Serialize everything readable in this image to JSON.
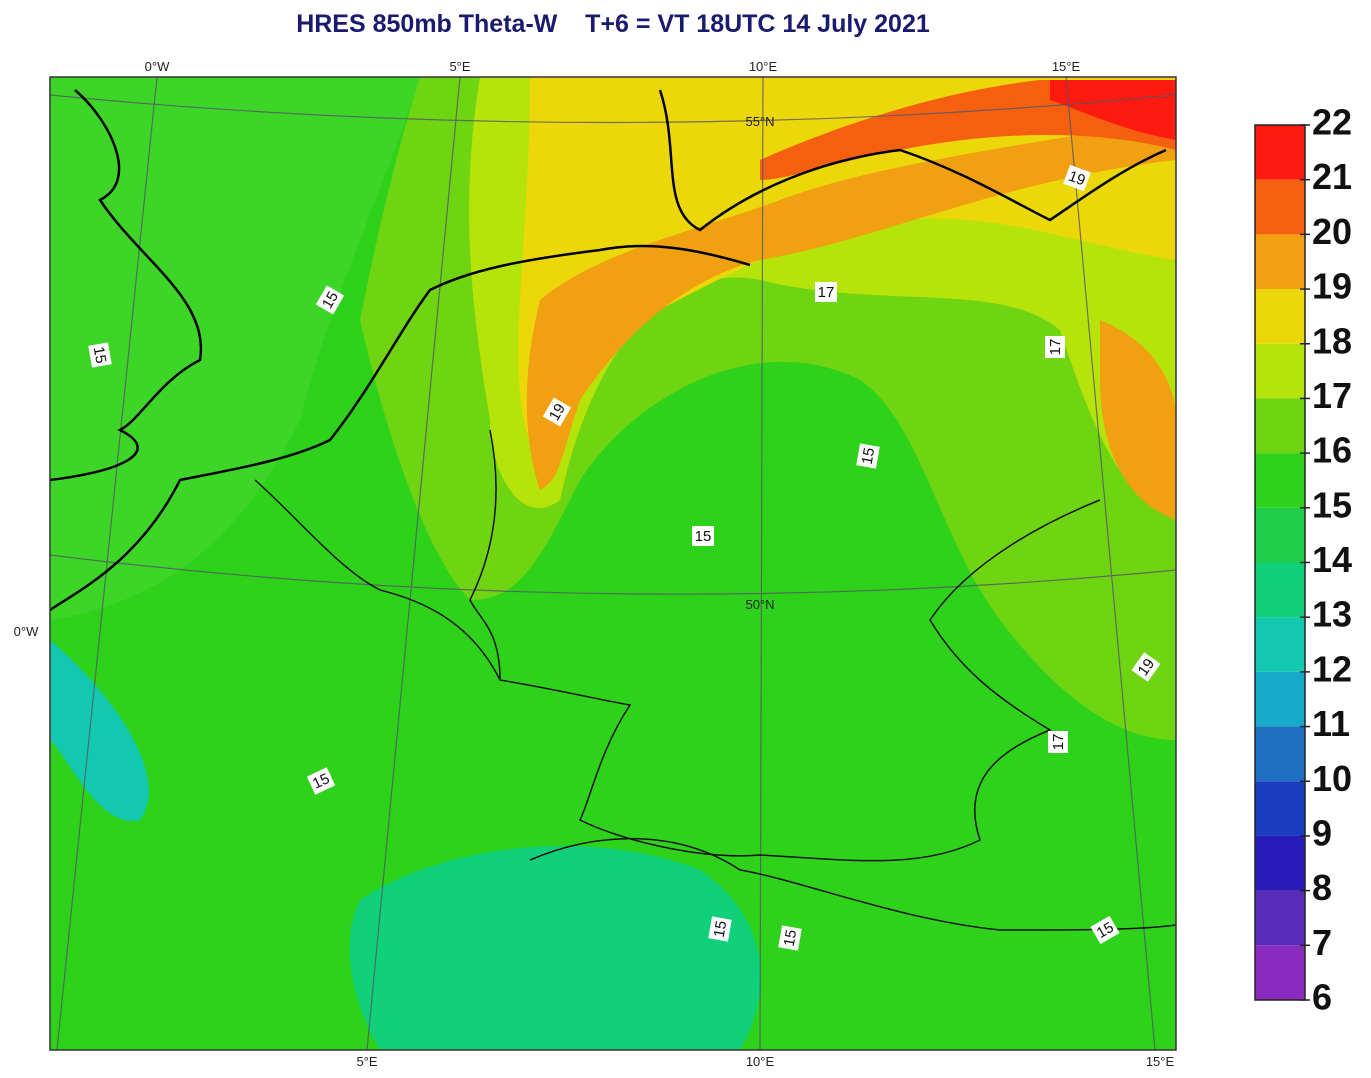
{
  "title": "HRES 850mb Theta-W    T+6 = VT 18UTC 14 July 2021",
  "graticule_labels": {
    "top": [
      "0°W",
      "5°E",
      "10°E",
      "15°E"
    ],
    "bottom": [
      "5°E",
      "10°E",
      "15°E"
    ],
    "left": [
      "0°W"
    ],
    "inner": [
      "55°N",
      "50°N"
    ]
  },
  "contour_labels": [
    "15",
    "19",
    "17",
    "17",
    "19",
    "15",
    "15",
    "15",
    "17",
    "19",
    "15",
    "15",
    "15",
    "15"
  ],
  "colorbar": {
    "ticks": [
      6,
      7,
      8,
      9,
      10,
      11,
      12,
      13,
      14,
      15,
      16,
      17,
      18,
      19,
      20,
      21,
      22
    ],
    "colors": [
      "#8a2bc0",
      "#5a2bb8",
      "#2a1ab8",
      "#1a3cc0",
      "#1f6fc0",
      "#17a9c9",
      "#12c9b0",
      "#10d07a",
      "#1fcf4a",
      "#2ed21a",
      "#6fd412",
      "#b6e40a",
      "#ecd80a",
      "#f0a010",
      "#f56010",
      "#ff1a10"
    ]
  }
}
